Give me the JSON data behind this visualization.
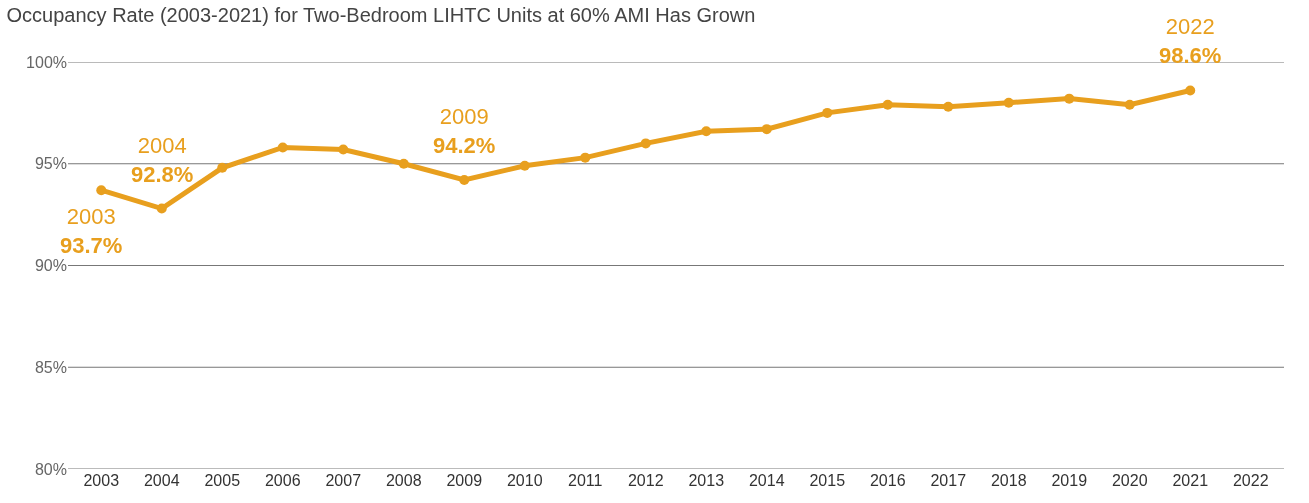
{
  "chart_data": {
    "type": "line",
    "title": "Occupancy Rate (2003-2021) for Two-Bedroom LIHTC Units at 60% AMI Has Grown",
    "categories": [
      "2003",
      "2004",
      "2005",
      "2006",
      "2007",
      "2008",
      "2009",
      "2010",
      "2011",
      "2012",
      "2013",
      "2014",
      "2015",
      "2016",
      "2017",
      "2018",
      "2019",
      "2020",
      "2021",
      "2022"
    ],
    "series": [
      {
        "color": "#e89f1e",
        "values": [
          93.7,
          92.8,
          94.8,
          95.8,
          95.7,
          95.0,
          94.2,
          94.9,
          95.3,
          96.0,
          96.6,
          96.7,
          97.5,
          97.9,
          97.8,
          98.0,
          98.2,
          97.9,
          98.6,
          null
        ]
      }
    ],
    "ylim": [
      80,
      100
    ],
    "yticks": [
      {
        "value": 80,
        "label": "80%"
      },
      {
        "value": 85,
        "label": "85%"
      },
      {
        "value": 90,
        "label": "90%"
      },
      {
        "value": 95,
        "label": "95%"
      },
      {
        "value": 100,
        "label": "100%"
      }
    ],
    "grid": "y",
    "marker": "circle",
    "line_style": "solid",
    "annotations": [
      {
        "text": "2003\n93.7%",
        "x": "2003",
        "y": 93.7
      },
      {
        "text": "2004\n92.8%",
        "x": "2004",
        "y": 92.8
      },
      {
        "text": "2009\n94.2%",
        "x": "2009",
        "y": 94.2
      },
      {
        "text": "2022\n98.6%",
        "x": "2021",
        "y": 98.6
      }
    ]
  }
}
